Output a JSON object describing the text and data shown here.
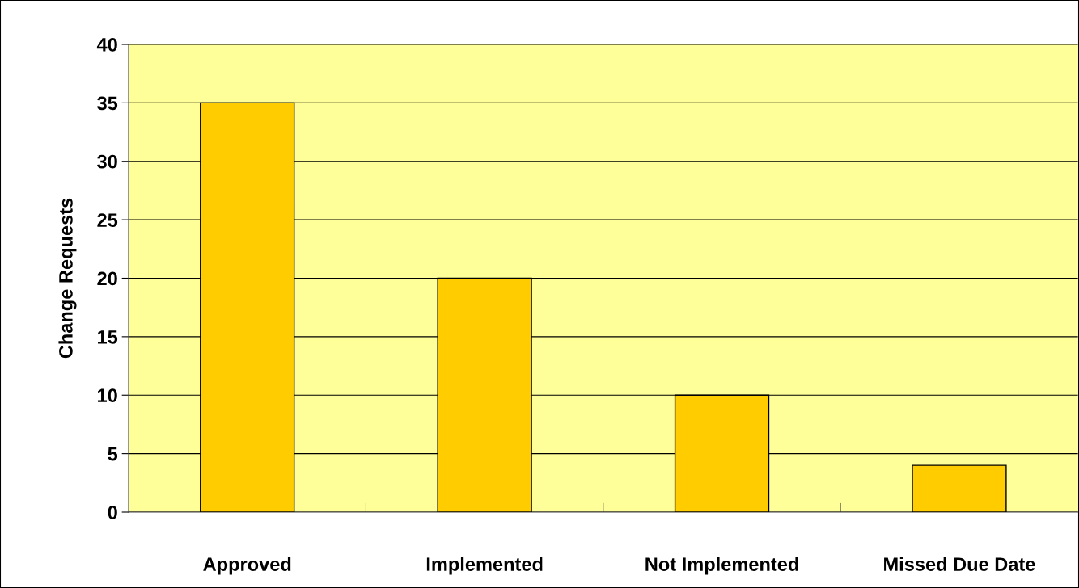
{
  "chart_data": {
    "type": "bar",
    "ylabel": "Change Requests",
    "categories": [
      "Approved",
      "Implemented",
      "Not Implemented",
      "Missed Due Date"
    ],
    "values": [
      35,
      20,
      10,
      4
    ],
    "color": "#ffcc00",
    "ylim": [
      0,
      40
    ],
    "yticks": [
      0,
      5,
      10,
      15,
      20,
      25,
      30,
      35,
      40
    ],
    "grid": "y",
    "legend": false
  }
}
